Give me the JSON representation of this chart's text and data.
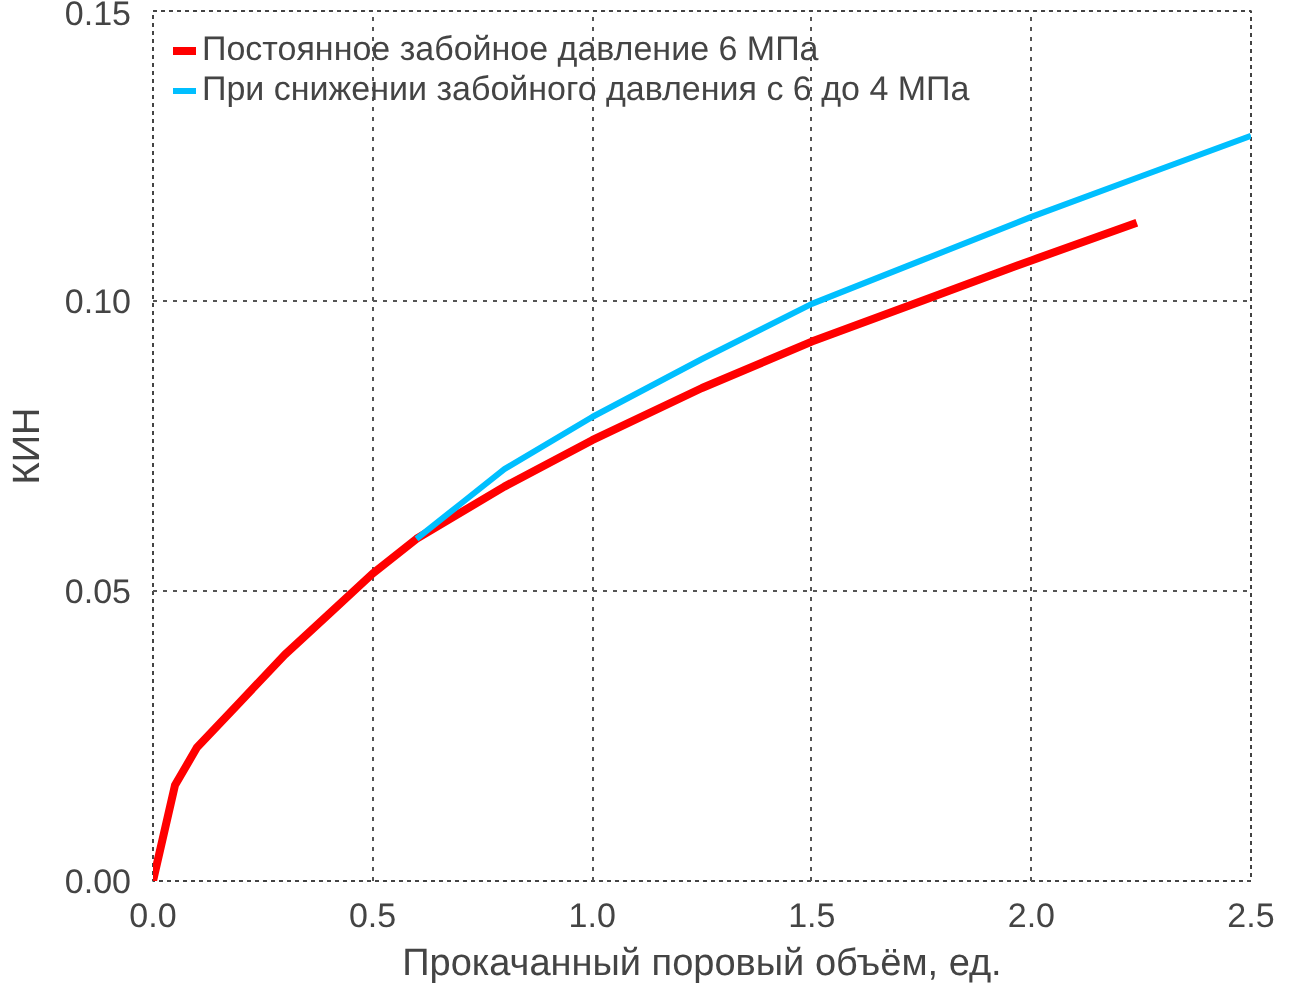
{
  "chart_data": {
    "type": "line",
    "xlabel": "Прокачанный поровый объём, ед.",
    "ylabel": "КИН",
    "xlim": [
      0,
      2.5
    ],
    "ylim": [
      0,
      0.15
    ],
    "xticks": [
      {
        "value": 0,
        "label": "0.0"
      },
      {
        "value": 0.5,
        "label": "0.5"
      },
      {
        "value": 1,
        "label": "1.0"
      },
      {
        "value": 1.5,
        "label": "1.5"
      },
      {
        "value": 2,
        "label": "2.0"
      },
      {
        "value": 2.5,
        "label": "2.5"
      }
    ],
    "yticks": [
      {
        "value": 0,
        "label": "0.00"
      },
      {
        "value": 0.05,
        "label": "0.05"
      },
      {
        "value": 0.1,
        "label": "0.10"
      },
      {
        "value": 0.15,
        "label": "0.15"
      }
    ],
    "grid": true,
    "legend": "top left",
    "line_style": "solid",
    "series": [
      {
        "name": "Постоянное забойное давление 6 МПа",
        "color": "#ff0000",
        "x": [
          0,
          0.05,
          0.1,
          0.2,
          0.3,
          0.4,
          0.5,
          0.6,
          0.8,
          1.0,
          1.25,
          1.5,
          1.75,
          2.0,
          2.24
        ],
        "values": [
          0,
          0.0165,
          0.023,
          0.031,
          0.039,
          0.046,
          0.053,
          0.059,
          0.068,
          0.076,
          0.085,
          0.093,
          0.1,
          0.107,
          0.1135
        ]
      },
      {
        "name": "При снижении забойного давления с 6 до 4 МПа",
        "color": "#00bfff",
        "x": [
          0.6,
          0.7,
          0.8,
          1.0,
          1.25,
          1.5,
          1.75,
          2.0,
          2.25,
          2.5
        ],
        "values": [
          0.059,
          0.065,
          0.071,
          0.08,
          0.09,
          0.0995,
          0.107,
          0.1145,
          0.1215,
          0.1285
        ]
      }
    ]
  }
}
